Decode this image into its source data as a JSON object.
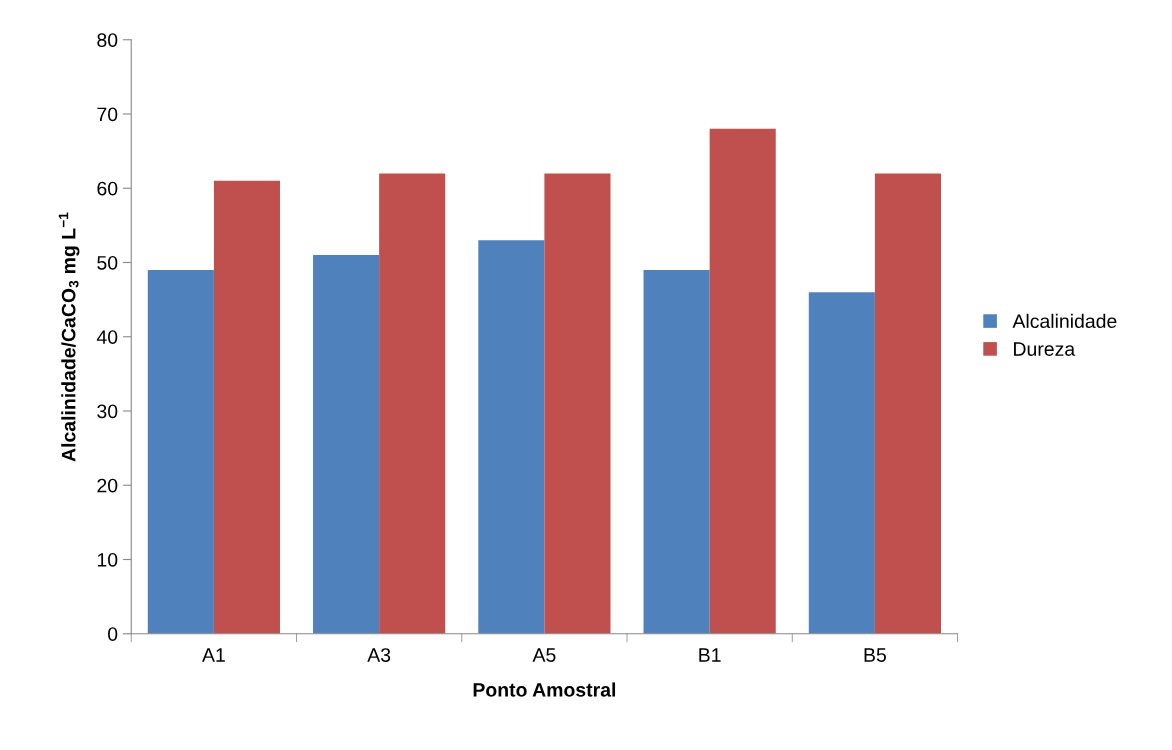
{
  "chart_data": {
    "type": "bar",
    "xlabel": "Ponto Amostral",
    "ylabel": "Alcalinidade/CaCO$_{3}$ mg L$^{−1}$",
    "categories": [
      "A1",
      "A3",
      "A5",
      "B1",
      "B5"
    ],
    "series": [
      {
        "name": "Alcalinidade",
        "color": "#4f81bd",
        "values": [
          49,
          51,
          53,
          49,
          46
        ]
      },
      {
        "name": "Dureza",
        "color": "#c0504d",
        "values": [
          61,
          62,
          62,
          68,
          62
        ]
      }
    ],
    "ylim": [
      0,
      80
    ],
    "yticks": [
      0,
      10,
      20,
      30,
      40,
      50,
      60,
      70,
      80
    ],
    "grid": false,
    "legend": "right"
  }
}
